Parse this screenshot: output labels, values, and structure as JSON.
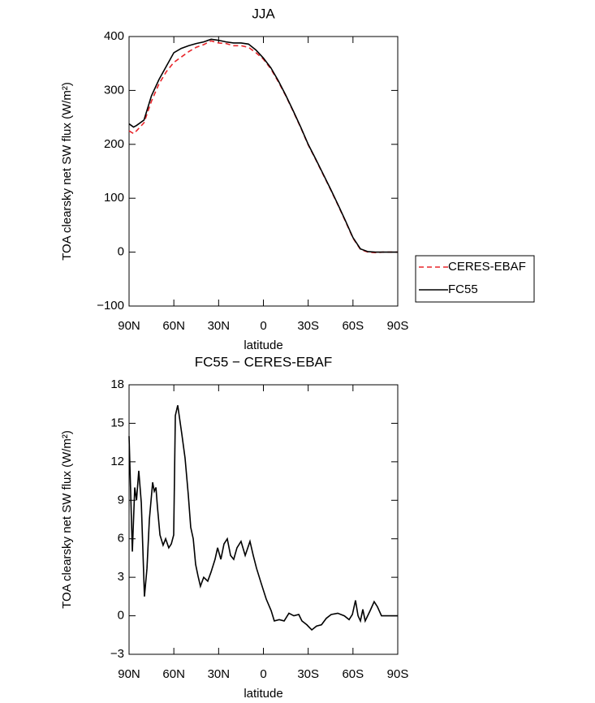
{
  "chart_data": [
    {
      "type": "line",
      "title": "JJA",
      "xlabel": "latitude",
      "ylabel": "TOA clearsky net SW flux (W/m²)",
      "xlim": [
        90,
        -90
      ],
      "ylim": [
        -100,
        400
      ],
      "xticks": [
        {
          "value": 90,
          "label": "90N"
        },
        {
          "value": 60,
          "label": "60N"
        },
        {
          "value": 30,
          "label": "30N"
        },
        0,
        {
          "value": -30,
          "label": "30S"
        },
        {
          "value": -60,
          "label": "60S"
        },
        {
          "value": -90,
          "label": "90S"
        }
      ],
      "yticks": [
        {
          "value": -100,
          "label": "−100"
        },
        0,
        100,
        200,
        300,
        400
      ],
      "legend": "right",
      "x": [
        90,
        87,
        85,
        80,
        75,
        70,
        65,
        60,
        55,
        50,
        45,
        40,
        35,
        30,
        25,
        20,
        15,
        10,
        5,
        0,
        -5,
        -10,
        -15,
        -20,
        -25,
        -30,
        -35,
        -40,
        -45,
        -50,
        -55,
        -60,
        -65,
        -70,
        -75,
        -80,
        -85,
        -90
      ],
      "series": [
        {
          "name": "CERES-EBAF",
          "color": "#e8262b",
          "linestyle": "dashed",
          "values": [
            225,
            220,
            225,
            240,
            280,
            312,
            335,
            352,
            362,
            372,
            380,
            385,
            392,
            388,
            387,
            383,
            383,
            380,
            370,
            358,
            340,
            316,
            290,
            261,
            231,
            199,
            172,
            144,
            116,
            87,
            57,
            26,
            5,
            0,
            -1,
            0,
            0,
            0
          ]
        },
        {
          "name": "FC55",
          "color": "#000000",
          "linestyle": "solid",
          "values": [
            238,
            232,
            235,
            245,
            290,
            320,
            345,
            370,
            378,
            383,
            387,
            390,
            395,
            393,
            390,
            388,
            388,
            386,
            375,
            360,
            342,
            318,
            291,
            262,
            232,
            200,
            173,
            145,
            117,
            88,
            58,
            27,
            6,
            1,
            0,
            0,
            0,
            0
          ]
        }
      ]
    },
    {
      "type": "line",
      "title": "FC55 − CERES-EBAF",
      "xlabel": "latitude",
      "ylabel": "TOA clearsky net SW flux (W/m²)",
      "xlim": [
        90,
        -90
      ],
      "ylim": [
        -3,
        18
      ],
      "xticks": [
        {
          "value": 90,
          "label": "90N"
        },
        {
          "value": 60,
          "label": "60N"
        },
        {
          "value": 30,
          "label": "30N"
        },
        0,
        {
          "value": -30,
          "label": "30S"
        },
        {
          "value": -60,
          "label": "60S"
        },
        {
          "value": -90,
          "label": "90S"
        }
      ],
      "yticks": [
        {
          "value": -3,
          "label": "−3"
        },
        0,
        3,
        6,
        9,
        12,
        15,
        18
      ],
      "color": "#000000",
      "x": [
        90,
        87.8,
        86.2,
        85,
        83.5,
        81.8,
        79.7,
        78,
        76.4,
        74.2,
        73.1,
        72,
        71,
        69.3,
        67.2,
        65.5,
        63.4,
        61.7,
        60.1,
        59,
        57.4,
        54.7,
        52.5,
        50.3,
        48.7,
        47,
        45.4,
        43.8,
        42.2,
        40,
        37.3,
        35.1,
        32.4,
        30.7,
        28.5,
        26.4,
        24.2,
        22,
        19.9,
        17.7,
        15,
        12.2,
        9,
        6.8,
        4.6,
        1.4,
        -1.9,
        -5.2,
        -7.3,
        -10.6,
        -13.9,
        -17.1,
        -20.4,
        -23.7,
        -25.8,
        -29.1,
        -32.4,
        -35.6,
        -38.9,
        -42.1,
        -45.4,
        -49.8,
        -54.2,
        -57.4,
        -59.6,
        -61.7,
        -63.4,
        -65,
        -66.6,
        -68.2,
        -71.5,
        -74.2,
        -76.4,
        -79.1,
        -90
      ],
      "values": [
        14,
        5,
        10,
        9,
        11.3,
        8.8,
        1.5,
        3.7,
        7.5,
        10.4,
        9.7,
        10,
        8.5,
        6.3,
        5.5,
        6,
        5.3,
        5.6,
        6.3,
        15.6,
        16.4,
        14.2,
        12.3,
        9.4,
        6.9,
        6,
        4,
        3.1,
        2.3,
        3,
        2.7,
        3.4,
        4.4,
        5.3,
        4.4,
        5.6,
        6,
        4.7,
        4.4,
        5.3,
        5.8,
        4.7,
        5.8,
        4.7,
        3.7,
        2.5,
        1.3,
        0.4,
        -0.4,
        -0.3,
        -0.4,
        0.2,
        0,
        0.1,
        -0.4,
        -0.7,
        -1.1,
        -0.8,
        -0.7,
        -0.2,
        0.1,
        0.2,
        0,
        -0.3,
        0.1,
        1.2,
        0,
        -0.4,
        0.5,
        -0.4,
        0.4,
        1.1,
        0.7,
        0,
        0
      ]
    }
  ]
}
